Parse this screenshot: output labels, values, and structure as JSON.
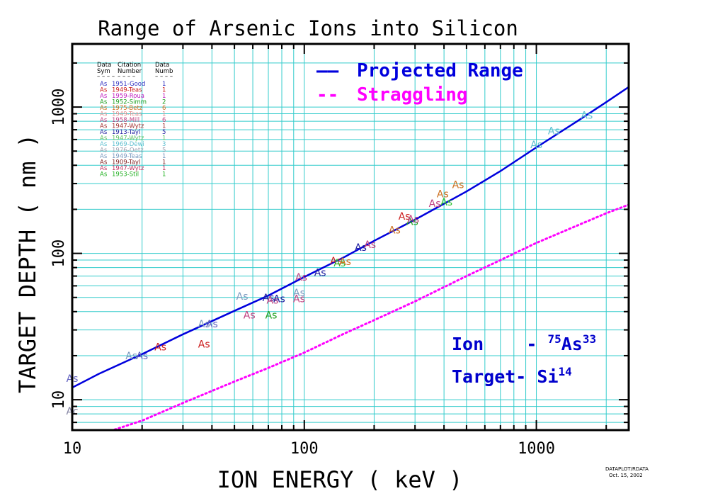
{
  "chart_data": {
    "type": "line",
    "title": "Range of Arsenic Ions into Silicon",
    "xlabel": "ION ENERGY ( keV )",
    "ylabel": "TARGET DEPTH ( nm )",
    "xscale": "log",
    "yscale": "log",
    "xlim": [
      10,
      2500
    ],
    "ylim": [
      6.2,
      2700
    ],
    "x_ticks": [
      10,
      100,
      1000
    ],
    "x_tick_labels": [
      "10",
      "100",
      "1000"
    ],
    "y_ticks": [
      10,
      100,
      1000
    ],
    "y_tick_labels": [
      "10",
      "100",
      "1000"
    ],
    "grid": true,
    "grid_color": "#33cccc",
    "series": [
      {
        "name": "Projected Range",
        "style": "solid",
        "color": "#0000dd",
        "x": [
          10,
          13,
          20,
          30,
          50,
          70,
          100,
          150,
          200,
          300,
          500,
          700,
          1000,
          1500,
          2000,
          2500
        ],
        "y": [
          12.1,
          15,
          20.5,
          28,
          40.5,
          51.5,
          69,
          95,
          122,
          170,
          265,
          365,
          530,
          800,
          1080,
          1370
        ]
      },
      {
        "name": "Straggling",
        "style": "dotted",
        "color": "#ff00ff",
        "x": [
          10,
          15,
          20,
          30,
          50,
          70,
          100,
          150,
          200,
          300,
          500,
          700,
          1000,
          1500,
          2000,
          2500
        ],
        "y": [
          6.2,
          6.2,
          7.2,
          9.5,
          13.3,
          16.5,
          21,
          28.5,
          35,
          47,
          70,
          90,
          118,
          155,
          188,
          215
        ]
      }
    ],
    "points": [
      {
        "x": 10,
        "y": 14,
        "color": "#6060c0",
        "label": "As"
      },
      {
        "x": 10,
        "y": 8.4,
        "color": "#8080a0",
        "label": "Ac"
      },
      {
        "x": 18,
        "y": 20,
        "color": "#7a9ac0",
        "label": "As"
      },
      {
        "x": 20,
        "y": 20,
        "color": "#6060c0",
        "label": "As"
      },
      {
        "x": 24,
        "y": 23,
        "color": "#cc2020",
        "label": "As"
      },
      {
        "x": 37,
        "y": 24,
        "color": "#cc2020",
        "label": "As"
      },
      {
        "x": 37,
        "y": 33,
        "color": "#7a9ac0",
        "label": "As"
      },
      {
        "x": 40,
        "y": 33,
        "color": "#6060c0",
        "label": "As"
      },
      {
        "x": 54,
        "y": 51,
        "color": "#7a9ac0",
        "label": "As"
      },
      {
        "x": 58,
        "y": 38,
        "color": "#c04080",
        "label": "As"
      },
      {
        "x": 70,
        "y": 50,
        "color": "#2020a0",
        "label": "As"
      },
      {
        "x": 72,
        "y": 38,
        "color": "#20a020",
        "label": "As"
      },
      {
        "x": 73,
        "y": 48,
        "color": "#c04080",
        "label": "As"
      },
      {
        "x": 78,
        "y": 49,
        "color": "#2020a0",
        "label": "As"
      },
      {
        "x": 95,
        "y": 49,
        "color": "#c04080",
        "label": "As"
      },
      {
        "x": 95,
        "y": 54,
        "color": "#7a9ac0",
        "label": "As"
      },
      {
        "x": 97,
        "y": 69,
        "color": "#c04080",
        "label": "As"
      },
      {
        "x": 117,
        "y": 74,
        "color": "#2020a0",
        "label": "As"
      },
      {
        "x": 137,
        "y": 89,
        "color": "#cc2020",
        "label": "As"
      },
      {
        "x": 142,
        "y": 86,
        "color": "#30c030",
        "label": "As"
      },
      {
        "x": 150,
        "y": 88,
        "color": "#cc7020",
        "label": "As"
      },
      {
        "x": 175,
        "y": 110,
        "color": "#2020a0",
        "label": "As"
      },
      {
        "x": 192,
        "y": 115,
        "color": "#c04080",
        "label": "As"
      },
      {
        "x": 245,
        "y": 145,
        "color": "#cc7020",
        "label": "As"
      },
      {
        "x": 270,
        "y": 180,
        "color": "#cc2020",
        "label": "As"
      },
      {
        "x": 292,
        "y": 165,
        "color": "#20a020",
        "label": "As"
      },
      {
        "x": 295,
        "y": 172,
        "color": "#c04080",
        "label": "As"
      },
      {
        "x": 365,
        "y": 220,
        "color": "#c04080",
        "label": "As"
      },
      {
        "x": 395,
        "y": 255,
        "color": "#cc7020",
        "label": "As"
      },
      {
        "x": 410,
        "y": 225,
        "color": "#30c030",
        "label": "As"
      },
      {
        "x": 460,
        "y": 295,
        "color": "#cc7020",
        "label": "As"
      },
      {
        "x": 1000,
        "y": 555,
        "color": "#60c0d0",
        "label": "As"
      },
      {
        "x": 1190,
        "y": 690,
        "color": "#60c0d0",
        "label": "As"
      },
      {
        "x": 1650,
        "y": 880,
        "color": "#60c0d0",
        "label": "As"
      }
    ],
    "legend": {
      "placement": "top-center",
      "entries": [
        {
          "marker": "——",
          "label": "Projected Range",
          "color": "#0000dd"
        },
        {
          "marker": "--",
          "label": "Straggling",
          "color": "#ff00ff"
        }
      ]
    },
    "citation_table": {
      "headers": [
        [
          "Data",
          "Sym"
        ],
        [
          "Citation",
          "Number"
        ],
        [
          "Data",
          "Numb"
        ]
      ],
      "rows": [
        {
          "sym": "As",
          "citation": "1951-Good",
          "numb": "1",
          "color": "#3030c0"
        },
        {
          "sym": "As",
          "citation": "1949-Teas",
          "numb": "1",
          "color": "#cc2020"
        },
        {
          "sym": "As",
          "citation": "1959-Roua",
          "numb": "1",
          "color": "#c020c0"
        },
        {
          "sym": "As",
          "citation": "1952-Simm",
          "numb": "2",
          "color": "#20a020"
        },
        {
          "sym": "As",
          "citation": "1975-Betz",
          "numb": "6",
          "color": "#cc7020"
        },
        {
          "sym": "As",
          "citation": "1949-Teas",
          "numb": "1",
          "color": "#e09090"
        },
        {
          "sym": "As",
          "citation": "1958-Mill",
          "numb": "6",
          "color": "#c04080"
        },
        {
          "sym": "As",
          "citation": "1947-Wytz",
          "numb": "1",
          "color": "#a03030"
        },
        {
          "sym": "As",
          "citation": "1913-Tayl",
          "numb": "5",
          "color": "#2020a0"
        },
        {
          "sym": "As",
          "citation": "1947-Wytz",
          "numb": "1",
          "color": "#60c060"
        },
        {
          "sym": "As",
          "citation": "1969-Dewi",
          "numb": "3",
          "color": "#60c0d0"
        },
        {
          "sym": "As",
          "citation": "1976-Oetz",
          "numb": "5",
          "color": "#a0a0b0"
        },
        {
          "sym": "As",
          "citation": "1949-Teas",
          "numb": "1",
          "color": "#7a9ac0"
        },
        {
          "sym": "As",
          "citation": "1909-Tayl",
          "numb": "1",
          "color": "#802020"
        },
        {
          "sym": "As",
          "citation": "1947-Wytz",
          "numb": "1",
          "color": "#c03060"
        },
        {
          "sym": "As",
          "citation": "1953-Stil",
          "numb": "1",
          "color": "#20b020"
        }
      ]
    },
    "annotations": {
      "ion_prefix": "Ion    - ",
      "ion_mass": "75",
      "ion_symbol": "As",
      "ion_z": "33",
      "target_prefix": "Target- ",
      "target_symbol": "Si",
      "target_z": "14"
    },
    "footer": {
      "line1": "DATAPLOT/RDATA",
      "line2": "Oct. 15, 2002"
    }
  }
}
